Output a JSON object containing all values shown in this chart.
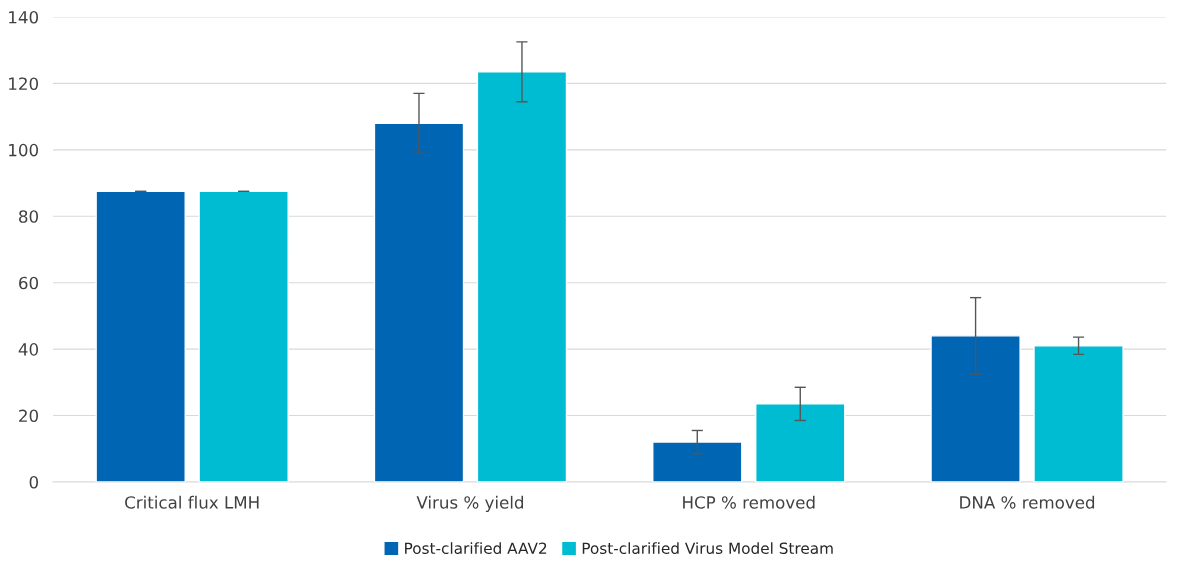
{
  "chart_data": {
    "type": "bar",
    "categories": [
      "Critical flux LMH",
      "Virus % yield",
      "HCP % removed",
      "DNA % removed"
    ],
    "series": [
      {
        "name": "Post-clarified AAV2",
        "color": "#0065b3",
        "values": [
          87.5,
          108,
          12,
          44
        ],
        "errors": [
          0,
          9,
          3.5,
          11.5
        ]
      },
      {
        "name": "Post-clarified Virus Model Stream",
        "color": "#00bcd2",
        "values": [
          87.5,
          123.5,
          23.5,
          41
        ],
        "errors": [
          0,
          9,
          5,
          2.6
        ]
      }
    ],
    "ylim": [
      0,
      140
    ],
    "yticks": [
      0,
      20,
      40,
      60,
      80,
      100,
      120,
      140
    ],
    "grid": "y",
    "legend": "bottom"
  }
}
